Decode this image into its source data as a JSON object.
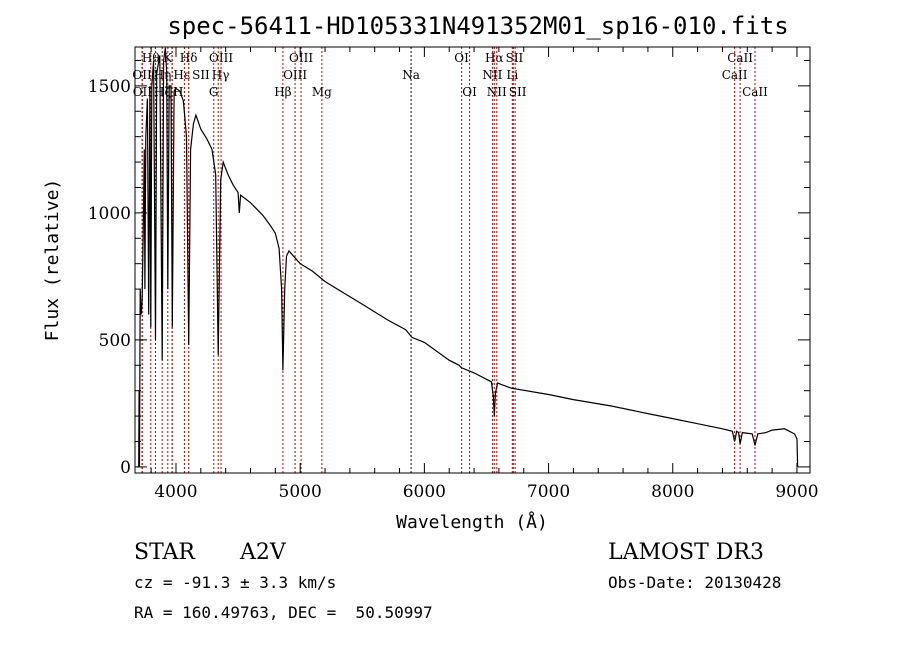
{
  "chart_data": {
    "type": "line",
    "title": "spec-56411-HD105331N491352M01_sp16-010.fits",
    "xlabel": "Wavelength (Å)",
    "ylabel": "Flux (relative)",
    "xlim": [
      3670,
      9105
    ],
    "ylim": [
      -24,
      1653
    ],
    "xticks": [
      4000,
      5000,
      6000,
      7000,
      8000,
      9000
    ],
    "xtick_labels": [
      "4000",
      "5000",
      "6000",
      "7000",
      "8000",
      "9000"
    ],
    "yticks": [
      0,
      500,
      1000,
      1500
    ],
    "ytick_labels": [
      "0",
      "500",
      "1000",
      "1500"
    ],
    "grid": false,
    "series": [
      {
        "name": "spectrum",
        "color": "#000000",
        "points": [
          [
            3690,
            0
          ],
          [
            3700,
            0
          ],
          [
            3703,
            300
          ],
          [
            3706,
            0
          ],
          [
            3712,
            700
          ],
          [
            3720,
            600
          ],
          [
            3727,
            650
          ],
          [
            3735,
            900
          ],
          [
            3745,
            1250
          ],
          [
            3750,
            700
          ],
          [
            3757,
            1300
          ],
          [
            3770,
            1450
          ],
          [
            3780,
            600
          ],
          [
            3790,
            1500
          ],
          [
            3797,
            550
          ],
          [
            3805,
            1500
          ],
          [
            3820,
            1600
          ],
          [
            3835,
            500
          ],
          [
            3845,
            1550
          ],
          [
            3870,
            1620
          ],
          [
            3889,
            420
          ],
          [
            3900,
            1600
          ],
          [
            3915,
            1650
          ],
          [
            3925,
            1550
          ],
          [
            3934,
            700
          ],
          [
            3945,
            1500
          ],
          [
            3960,
            1500
          ],
          [
            3970,
            550
          ],
          [
            3985,
            1480
          ],
          [
            4000,
            1490
          ],
          [
            4030,
            1480
          ],
          [
            4060,
            1440
          ],
          [
            4085,
            1300
          ],
          [
            4102,
            480
          ],
          [
            4118,
            1250
          ],
          [
            4140,
            1350
          ],
          [
            4160,
            1385
          ],
          [
            4200,
            1330
          ],
          [
            4250,
            1290
          ],
          [
            4290,
            1250
          ],
          [
            4320,
            1150
          ],
          [
            4340,
            440
          ],
          [
            4360,
            1130
          ],
          [
            4380,
            1200
          ],
          [
            4420,
            1150
          ],
          [
            4460,
            1110
          ],
          [
            4500,
            1080
          ],
          [
            4510,
            1000
          ],
          [
            4520,
            1070
          ],
          [
            4600,
            1040
          ],
          [
            4700,
            990
          ],
          [
            4760,
            950
          ],
          [
            4800,
            920
          ],
          [
            4830,
            860
          ],
          [
            4850,
            700
          ],
          [
            4861,
            380
          ],
          [
            4875,
            700
          ],
          [
            4890,
            830
          ],
          [
            4910,
            850
          ],
          [
            5000,
            800
          ],
          [
            5100,
            770
          ],
          [
            5200,
            730
          ],
          [
            5300,
            700
          ],
          [
            5500,
            640
          ],
          [
            5700,
            580
          ],
          [
            5850,
            540
          ],
          [
            5900,
            510
          ],
          [
            6000,
            490
          ],
          [
            6200,
            420
          ],
          [
            6280,
            400
          ],
          [
            6300,
            390
          ],
          [
            6400,
            370
          ],
          [
            6500,
            345
          ],
          [
            6540,
            335
          ],
          [
            6555,
            280
          ],
          [
            6563,
            200
          ],
          [
            6572,
            290
          ],
          [
            6590,
            330
          ],
          [
            6700,
            310
          ],
          [
            7000,
            285
          ],
          [
            7200,
            265
          ],
          [
            7500,
            240
          ],
          [
            7800,
            210
          ],
          [
            8000,
            190
          ],
          [
            8200,
            170
          ],
          [
            8400,
            150
          ],
          [
            8480,
            140
          ],
          [
            8498,
            100
          ],
          [
            8515,
            140
          ],
          [
            8530,
            135
          ],
          [
            8542,
            90
          ],
          [
            8560,
            135
          ],
          [
            8640,
            130
          ],
          [
            8662,
            85
          ],
          [
            8685,
            130
          ],
          [
            8750,
            135
          ],
          [
            8800,
            145
          ],
          [
            8900,
            150
          ],
          [
            8980,
            130
          ],
          [
            9000,
            110
          ],
          [
            9005,
            0
          ]
        ]
      }
    ],
    "line_markers": [
      {
        "label": "Hθ",
        "wl": 3797,
        "row": 1,
        "color": "#c00000"
      },
      {
        "label": "K",
        "wl": 3934,
        "row": 1,
        "color": "#c00000"
      },
      {
        "label": "Hδ",
        "wl": 4102,
        "row": 1,
        "color": "#c00000"
      },
      {
        "label": "OIII",
        "wl": 4363,
        "row": 1,
        "color": "#c00000"
      },
      {
        "label": "OIII",
        "wl": 5007,
        "row": 1,
        "color": "#c00000"
      },
      {
        "label": "OI",
        "wl": 6300,
        "row": 1,
        "color": "#c00000"
      },
      {
        "label": "Hα",
        "wl": 6563,
        "row": 1,
        "color": "#c00000"
      },
      {
        "label": "SII",
        "wl": 6716,
        "row": 1,
        "color": "#c00000"
      },
      {
        "label": "CaII",
        "wl": 8542,
        "row": 1,
        "color": "#c00000"
      },
      {
        "label": "OII",
        "wl": 3727,
        "row": 2,
        "color": "#c00000"
      },
      {
        "label": "Hη",
        "wl": 3835,
        "row": 2,
        "color": "#c00000"
      },
      {
        "label": "Hε",
        "wl": 3970,
        "row": 2,
        "color": "#c00000"
      },
      {
        "label": "SII",
        "wl": 4068,
        "row": 2,
        "color": "#c00000"
      },
      {
        "label": "Hγ",
        "wl": 4340,
        "row": 2,
        "color": "#c00000"
      },
      {
        "label": "OIII",
        "wl": 4959,
        "row": 2,
        "color": "#c00000"
      },
      {
        "label": "Na",
        "wl": 5893,
        "row": 2,
        "color": "#000000"
      },
      {
        "label": "NII",
        "wl": 6548,
        "row": 2,
        "color": "#c00000"
      },
      {
        "label": "Li",
        "wl": 6708,
        "row": 2,
        "color": "#c00000"
      },
      {
        "label": "CaII",
        "wl": 8498,
        "row": 2,
        "color": "#c00000"
      },
      {
        "label": "OII",
        "wl": 3729,
        "row": 3,
        "color": "#c00000"
      },
      {
        "label": "Hζ",
        "wl": 3889,
        "row": 3,
        "color": "#c00000"
      },
      {
        "label": "H",
        "wl": 3968,
        "row": 3,
        "color": "#c00000"
      },
      {
        "label": "G",
        "wl": 4304,
        "row": 3,
        "color": "#c00000"
      },
      {
        "label": "Hβ",
        "wl": 4861,
        "row": 3,
        "color": "#c00000"
      },
      {
        "label": "Mg",
        "wl": 5175,
        "row": 3,
        "color": "#c00000"
      },
      {
        "label": "OI",
        "wl": 6364,
        "row": 3,
        "color": "#c00000"
      },
      {
        "label": "NII",
        "wl": 6583,
        "row": 3,
        "color": "#c00000"
      },
      {
        "label": "SII",
        "wl": 6731,
        "row": 3,
        "color": "#c00000"
      },
      {
        "label": "CaII",
        "wl": 8662,
        "row": 3,
        "color": "#c00000"
      }
    ]
  },
  "info": {
    "class": "STAR",
    "subclass": "A2V",
    "survey": "LAMOST DR3",
    "cz": "cz = -91.3 ± 3.3 km/s",
    "obs_date": "Obs-Date: 20130428",
    "coords": "RA = 160.49763, DEC =  50.50997"
  }
}
